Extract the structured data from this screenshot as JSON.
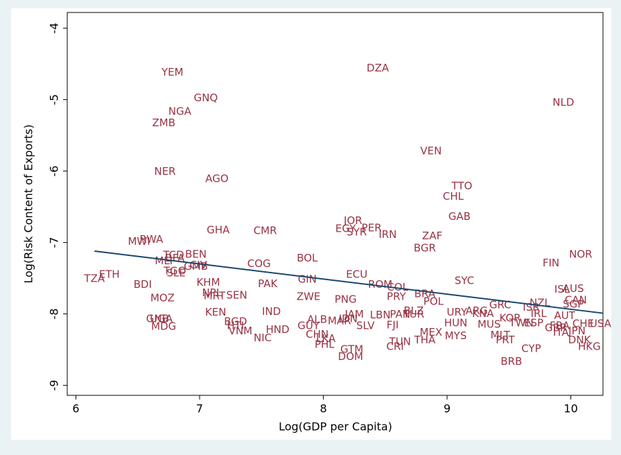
{
  "chart_data": {
    "type": "scatter",
    "x_label": "Log(GDP per Capita)",
    "y_label": "Log(Risk Content of Exports)",
    "xlim": [
      5.93,
      10.26
    ],
    "ylim": [
      -9.14,
      -3.78
    ],
    "xticks": [
      6,
      7,
      8,
      9,
      10
    ],
    "yticks": [
      -9,
      -8,
      -7,
      -6,
      -5,
      -4
    ],
    "series": [
      {
        "color": "#993344",
        "labels": [
          "YEM",
          "DZA",
          "GNQ",
          "NGA",
          "ZMB",
          "NLD",
          "VEN",
          "NER",
          "AGO",
          "TTO",
          "CHL",
          "GAB",
          "JOR",
          "EGY",
          "PER",
          "SYR",
          "IRN",
          "GHA",
          "CMR",
          "ZAF",
          "RWA",
          "MWI",
          "BGR",
          "NOR",
          "BEN",
          "TCD",
          "BFA",
          "MLI",
          "BOL",
          "FIN",
          "COG",
          "CIV",
          "GMB",
          "TGO",
          "SLE",
          "ETH",
          "TZA",
          "ECU",
          "SYC",
          "GIN",
          "BDI",
          "PAK",
          "KHM",
          "ROM",
          "COL",
          "ISL",
          "AUS",
          "BRA",
          "PRY",
          "NPL",
          "MRT",
          "SEN",
          "MOZ",
          "ZWE",
          "PNG",
          "CAN",
          "POL",
          "NZL",
          "SGP",
          "GRC",
          "IND",
          "KEN",
          "ISR",
          "BLZ",
          "ARG",
          "URY",
          "JAM",
          "KNA",
          "IRL",
          "AUT",
          "KOR",
          "PAN",
          "TUR",
          "LBN",
          "GNB",
          "UGA",
          "ALB",
          "MAR",
          "IDN",
          "HUN",
          "MUS",
          "TWN",
          "ESP",
          "USA",
          "CHE",
          "BGD",
          "FJI",
          "SLV",
          "GUY",
          "HTI",
          "MDG",
          "GBR",
          "FRA",
          "VNM",
          "ITA",
          "JPN",
          "HND",
          "MEX",
          "MYS",
          "MLT",
          "CHN",
          "NIC",
          "DNK",
          "PRT",
          "THA",
          "LKA",
          "TUN",
          "PHL",
          "CRI",
          "HKG",
          "CYP",
          "GTM",
          "DOM",
          "BRB"
        ],
        "x": [
          6.78,
          8.44,
          7.05,
          6.84,
          6.71,
          9.94,
          8.87,
          6.72,
          7.14,
          9.12,
          9.05,
          9.1,
          8.24,
          8.18,
          8.39,
          8.27,
          8.52,
          7.15,
          7.53,
          8.88,
          6.61,
          6.51,
          8.82,
          10.08,
          6.97,
          6.79,
          6.8,
          6.71,
          7.87,
          9.84,
          7.48,
          6.99,
          6.97,
          6.8,
          6.81,
          6.27,
          6.15,
          8.27,
          9.14,
          7.87,
          6.54,
          7.55,
          7.07,
          8.46,
          8.6,
          9.93,
          10.02,
          8.82,
          8.59,
          7.1,
          7.12,
          7.3,
          6.7,
          7.88,
          8.18,
          10.04,
          8.89,
          9.75,
          10.02,
          9.43,
          7.58,
          7.13,
          9.68,
          8.73,
          9.24,
          9.08,
          8.25,
          9.29,
          9.74,
          9.95,
          9.51,
          8.62,
          8.73,
          8.46,
          6.66,
          6.69,
          7.95,
          8.13,
          8.2,
          9.07,
          9.34,
          9.6,
          9.7,
          10.24,
          10.1,
          7.29,
          8.56,
          8.34,
          7.88,
          7.29,
          6.71,
          9.88,
          9.91,
          7.33,
          9.92,
          10.05,
          7.63,
          8.87,
          9.07,
          9.43,
          7.95,
          7.51,
          10.07,
          9.47,
          8.82,
          8.02,
          8.62,
          8.01,
          8.58,
          10.15,
          9.68,
          8.23,
          8.22,
          9.52
        ],
        "values": [
          -4.62,
          -4.56,
          -4.98,
          -5.17,
          -5.33,
          -5.04,
          -5.72,
          -6.01,
          -6.11,
          -6.21,
          -6.36,
          -6.64,
          -6.7,
          -6.81,
          -6.8,
          -6.86,
          -6.89,
          -6.83,
          -6.84,
          -6.91,
          -6.96,
          -6.99,
          -7.08,
          -7.17,
          -7.17,
          -7.18,
          -7.22,
          -7.26,
          -7.22,
          -7.29,
          -7.3,
          -7.32,
          -7.34,
          -7.4,
          -7.43,
          -7.45,
          -7.51,
          -7.45,
          -7.54,
          -7.52,
          -7.59,
          -7.58,
          -7.56,
          -7.59,
          -7.63,
          -7.66,
          -7.65,
          -7.72,
          -7.76,
          -7.71,
          -7.75,
          -7.74,
          -7.78,
          -7.76,
          -7.8,
          -7.81,
          -7.83,
          -7.85,
          -7.87,
          -7.88,
          -7.97,
          -7.98,
          -7.91,
          -7.96,
          -7.96,
          -7.98,
          -8.01,
          -8.0,
          -8.0,
          -8.03,
          -8.06,
          -8.01,
          -8.01,
          -8.02,
          -8.07,
          -8.07,
          -8.08,
          -8.1,
          -8.07,
          -8.13,
          -8.15,
          -8.13,
          -8.13,
          -8.14,
          -8.14,
          -8.11,
          -8.16,
          -8.17,
          -8.17,
          -8.17,
          -8.18,
          -8.2,
          -8.17,
          -8.24,
          -8.26,
          -8.24,
          -8.22,
          -8.26,
          -8.31,
          -8.3,
          -8.29,
          -8.34,
          -8.37,
          -8.37,
          -8.37,
          -8.35,
          -8.39,
          -8.43,
          -8.46,
          -8.46,
          -8.49,
          -8.5,
          -8.6,
          -8.67
        ]
      }
    ],
    "fit_line": {
      "color": "#1a476f",
      "x": [
        6.15,
        10.26
      ],
      "values": [
        -7.12,
        -7.99
      ]
    }
  }
}
